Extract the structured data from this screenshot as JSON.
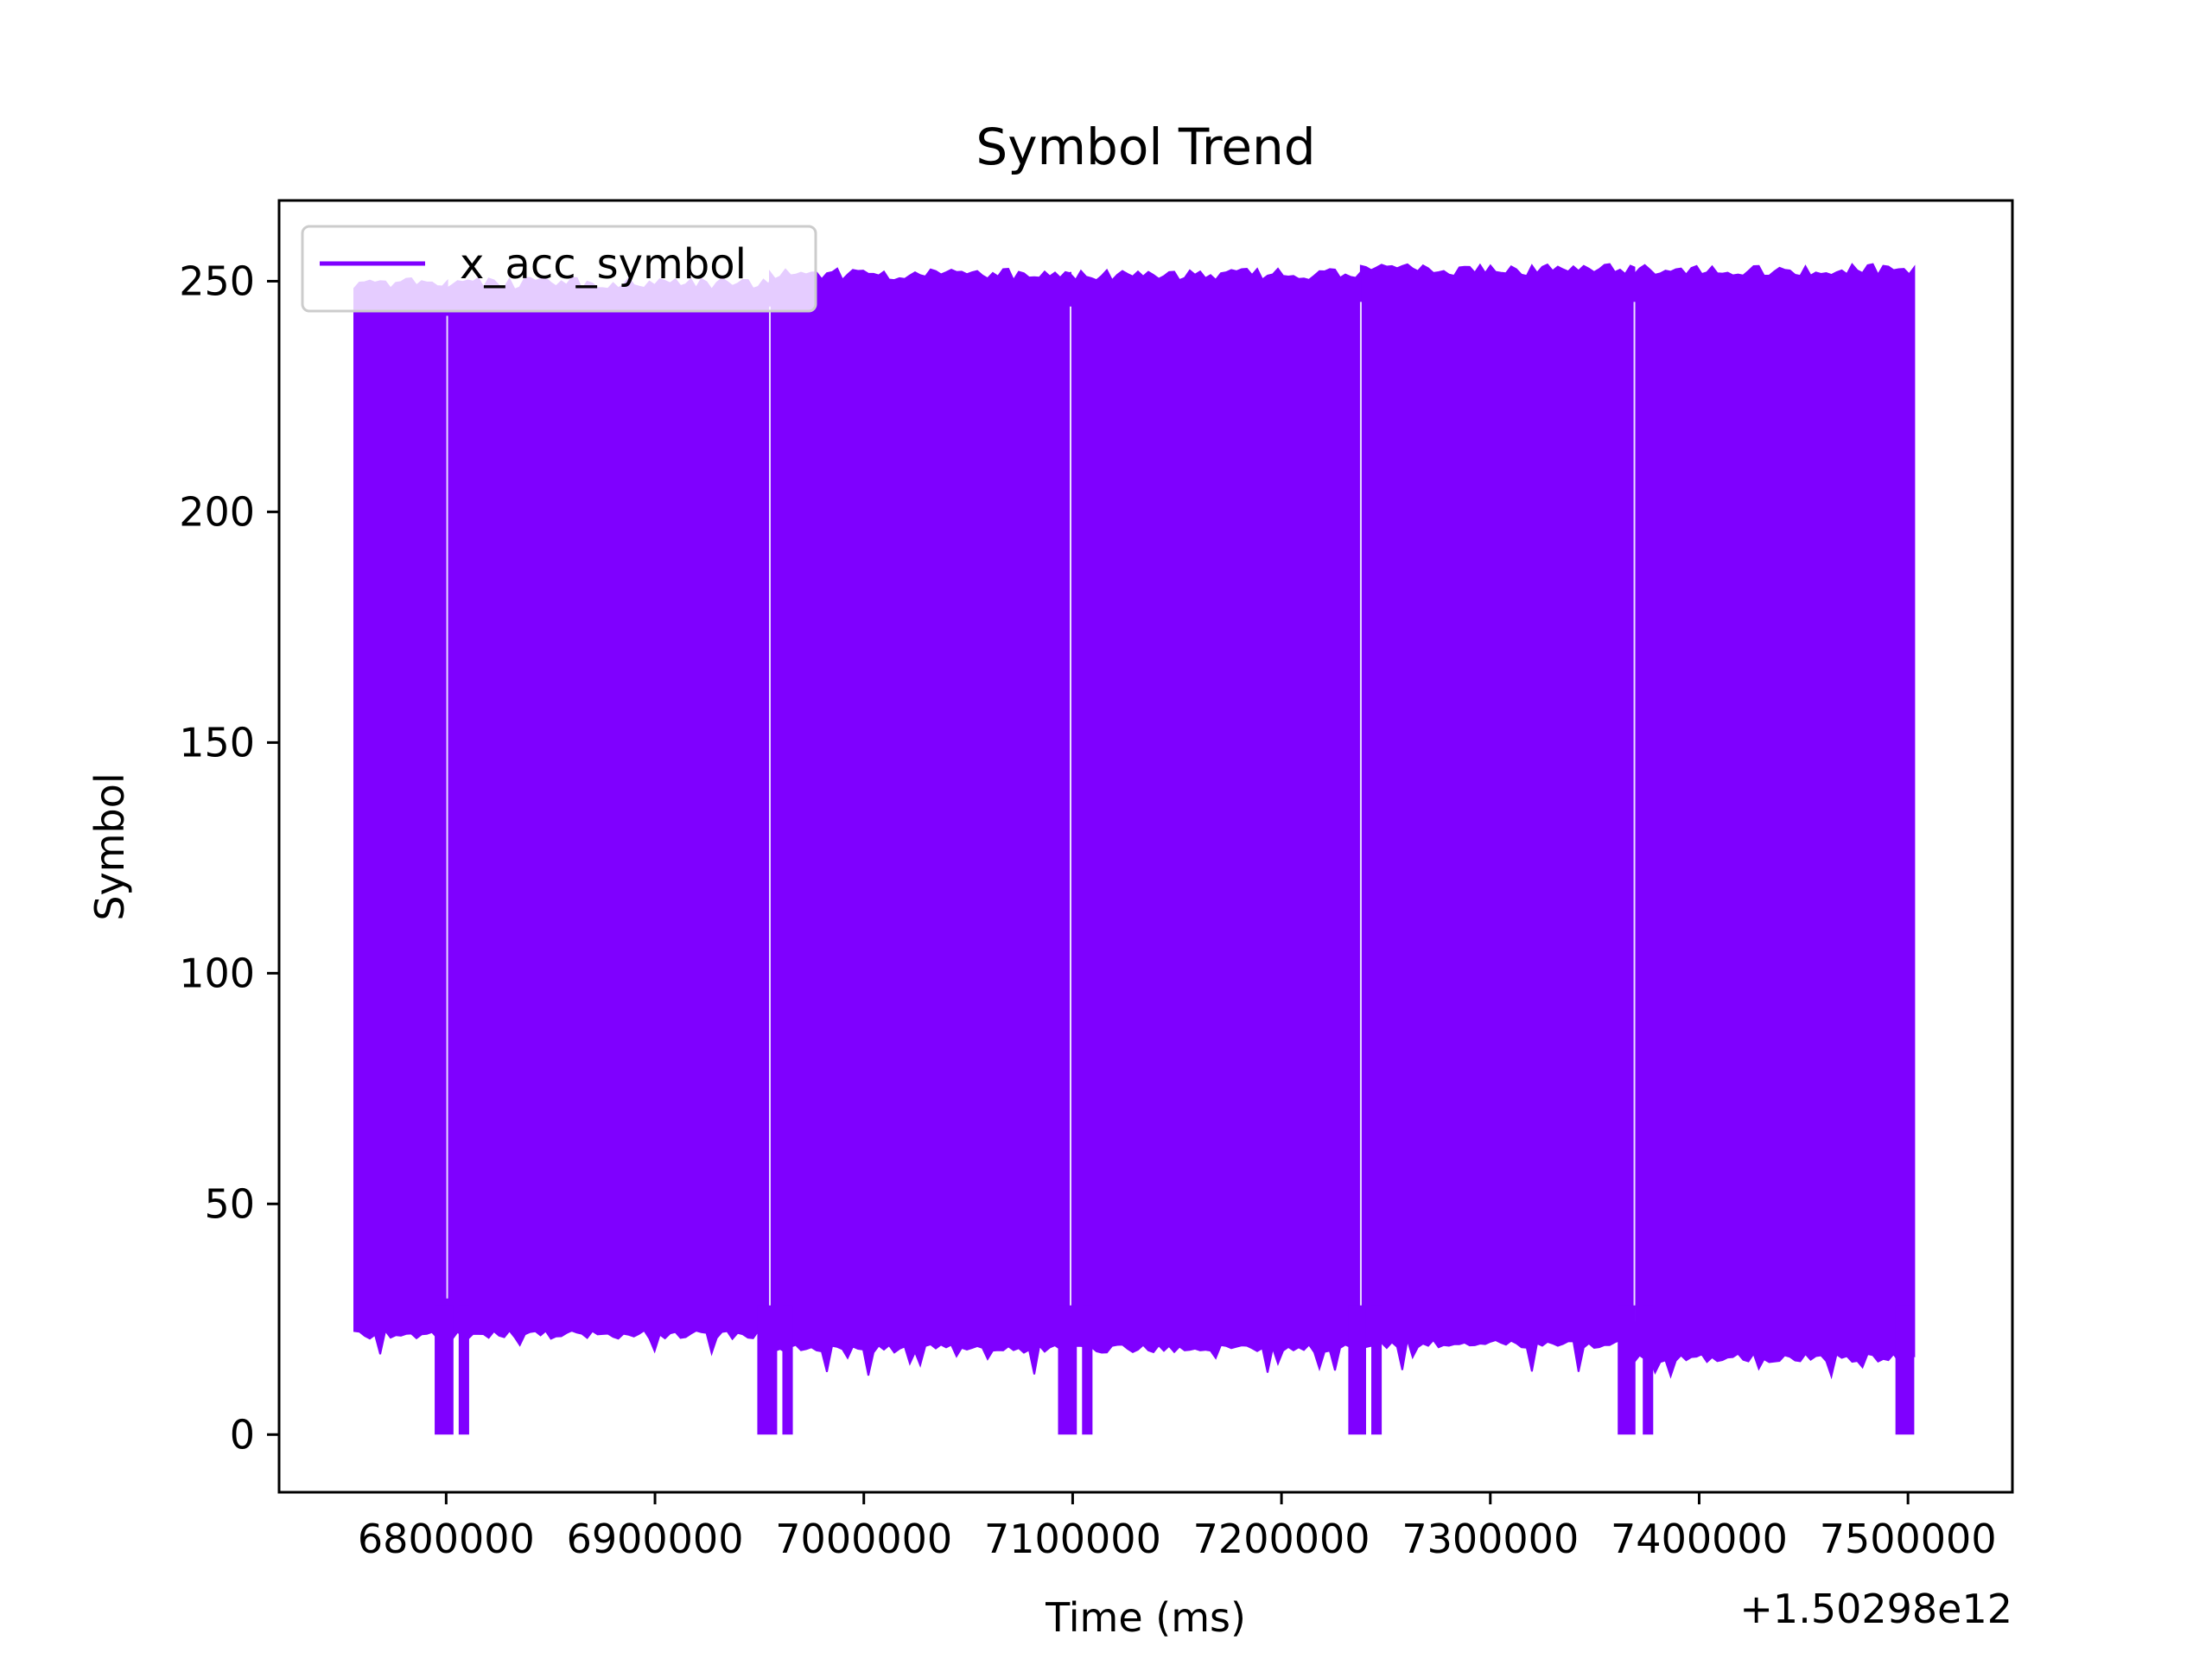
{
  "chart_data": {
    "type": "line",
    "title": "Symbol Trend",
    "xlabel": "Time (ms)",
    "ylabel": "Symbol",
    "x_offset_label": "+1.50298e12",
    "xlim": [
      6720000,
      7550000
    ],
    "ylim": [
      -12.5,
      267.5
    ],
    "x_ticks": [
      {
        "value": 6800000,
        "label": "6800000"
      },
      {
        "value": 6900000,
        "label": "6900000"
      },
      {
        "value": 7000000,
        "label": "7000000"
      },
      {
        "value": 7100000,
        "label": "7100000"
      },
      {
        "value": 7200000,
        "label": "7200000"
      },
      {
        "value": 7300000,
        "label": "7300000"
      },
      {
        "value": 7400000,
        "label": "7400000"
      },
      {
        "value": 7500000,
        "label": "7500000"
      }
    ],
    "y_ticks": [
      {
        "value": 0,
        "label": "0"
      },
      {
        "value": 50,
        "label": "50"
      },
      {
        "value": 100,
        "label": "100"
      },
      {
        "value": 150,
        "label": "150"
      },
      {
        "value": 200,
        "label": "200"
      },
      {
        "value": 250,
        "label": "250"
      }
    ],
    "grid": false,
    "legend_position": "top-left",
    "series": [
      {
        "name": "x_acc_symbol",
        "color": "#7f00ff",
        "segments": [
          {
            "x_start": 6756000,
            "x_end": 6800500,
            "y_low": 22,
            "y_high": 250
          },
          {
            "x_start": 6800500,
            "x_end": 6955000,
            "y_low": 22,
            "y_high": 250
          },
          {
            "x_start": 6955000,
            "x_end": 7099000,
            "y_low": 19,
            "y_high": 252
          },
          {
            "x_start": 7099000,
            "x_end": 7238000,
            "y_low": 19,
            "y_high": 252
          },
          {
            "x_start": 7238000,
            "x_end": 7369000,
            "y_low": 20,
            "y_high": 253
          },
          {
            "x_start": 7369000,
            "x_end": 7503000,
            "y_low": 17,
            "y_high": 253
          }
        ],
        "dropouts": [
          {
            "x_start": 6794500,
            "x_end": 6803500,
            "y": 0
          },
          {
            "x_start": 6806000,
            "x_end": 6811000,
            "y": 0
          },
          {
            "x_start": 6949000,
            "x_end": 6958500,
            "y": 0
          },
          {
            "x_start": 6961000,
            "x_end": 6966000,
            "y": 0
          },
          {
            "x_start": 7093000,
            "x_end": 7102000,
            "y": 0
          },
          {
            "x_start": 7104500,
            "x_end": 7109500,
            "y": 0
          },
          {
            "x_start": 7232000,
            "x_end": 7240500,
            "y": 0
          },
          {
            "x_start": 7243000,
            "x_end": 7248000,
            "y": 0
          },
          {
            "x_start": 7361000,
            "x_end": 7369500,
            "y": 0
          },
          {
            "x_start": 7373000,
            "x_end": 7378000,
            "y": 0
          },
          {
            "x_start": 7494000,
            "x_end": 7503000,
            "y": 0
          }
        ]
      }
    ]
  }
}
